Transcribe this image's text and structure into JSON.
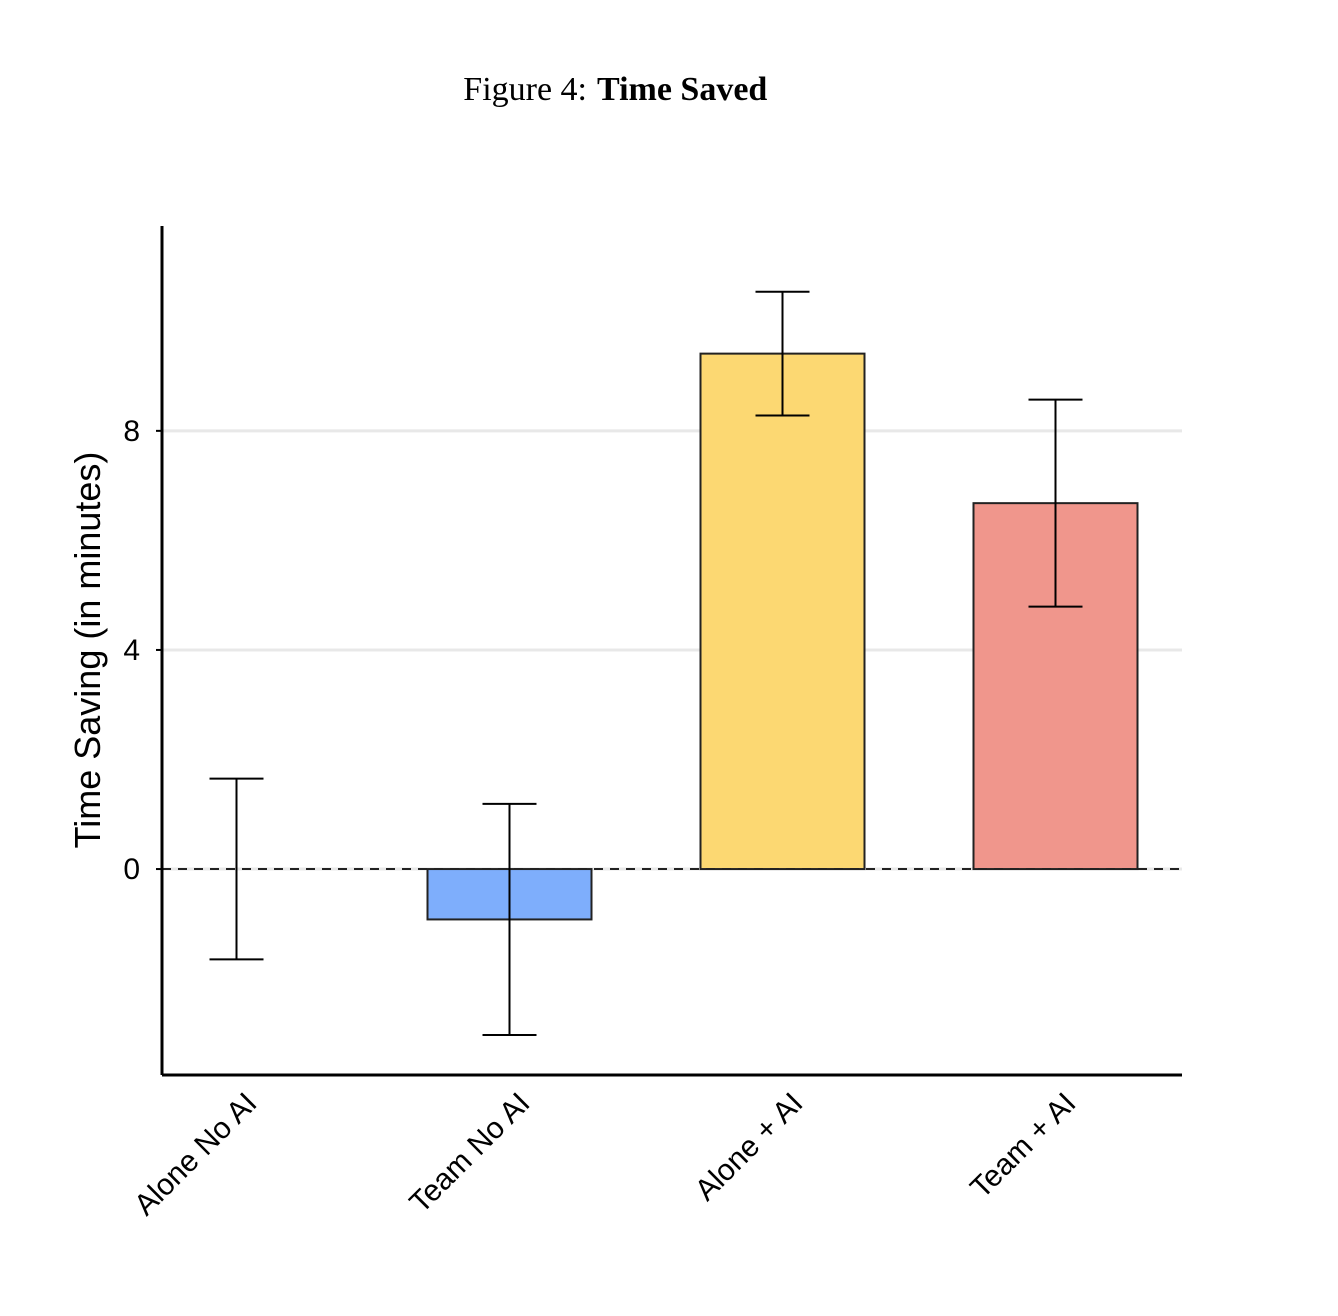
{
  "chart_data": {
    "type": "bar",
    "figure_label": "Figure 4:",
    "title": "Time Saved",
    "y_label": "Time Saving (in minutes)",
    "categories": [
      "Alone No AI",
      "Team No AI",
      "Alone + AI",
      "Team + AI"
    ],
    "values": [
      0,
      -0.92,
      9.41,
      6.68
    ],
    "errors": [
      1.65,
      2.11,
      1.13,
      1.89
    ],
    "colors": [
      "#7eaefc",
      "#7eaefc",
      "#fcd872",
      "#f0968c"
    ],
    "ylim": [
      -3.76,
      11.74
    ],
    "yticks": [
      0,
      4,
      8
    ],
    "grid": true
  }
}
